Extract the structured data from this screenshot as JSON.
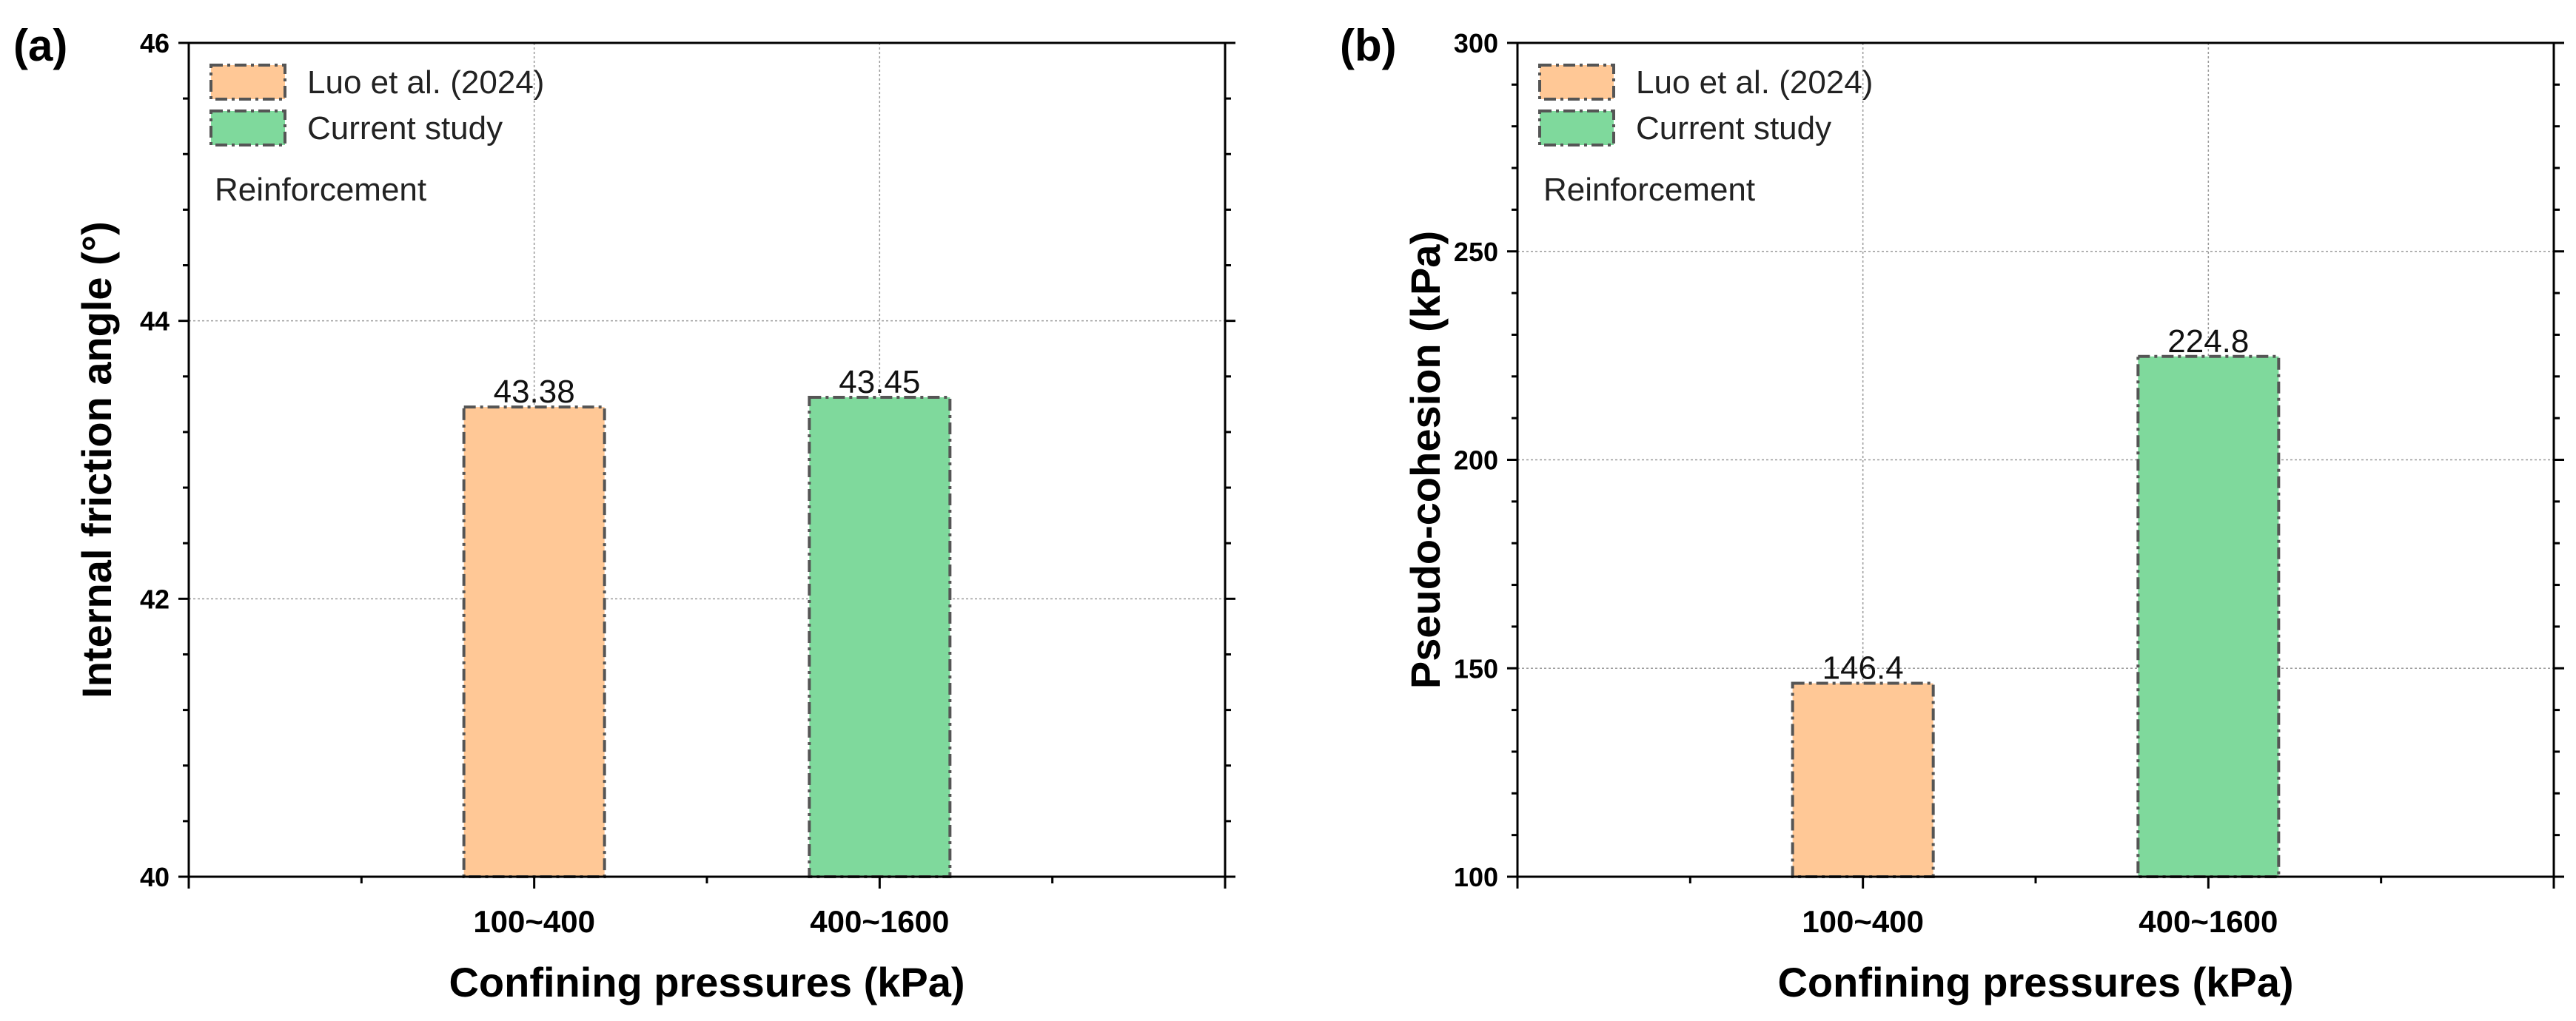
{
  "chart_data": [
    {
      "type": "bar",
      "panel_label": "(a)",
      "categories": [
        "100~400",
        "400~1600"
      ],
      "series": [
        {
          "name": "Luo et al. (2024)",
          "color": "#FFC896",
          "category": "100~400",
          "value": 43.38,
          "label": "43.38"
        },
        {
          "name": "Current study",
          "color": "#7FD99C",
          "category": "400~1600",
          "value": 43.45,
          "label": "43.45"
        }
      ],
      "annotation": "Reinforcement",
      "xlabel": "Confining pressures (kPa)",
      "ylabel": "Internal friction angle (°)",
      "ylim": [
        40,
        46
      ],
      "yticks": [
        "40",
        "42",
        "44",
        "46"
      ],
      "grid": true,
      "legend_position": "top-left"
    },
    {
      "type": "bar",
      "panel_label": "(b)",
      "categories": [
        "100~400",
        "400~1600"
      ],
      "series": [
        {
          "name": "Luo et al. (2024)",
          "color": "#FFC896",
          "category": "100~400",
          "value": 146.4,
          "label": "146.4"
        },
        {
          "name": "Current study",
          "color": "#7FD99C",
          "category": "400~1600",
          "value": 224.8,
          "label": "224.8"
        }
      ],
      "annotation": "Reinforcement",
      "xlabel": "Confining pressures (kPa)",
      "ylabel": "Pseudo-cohesion (kPa)",
      "ylim": [
        100,
        300
      ],
      "yticks": [
        "100",
        "150",
        "200",
        "250",
        "300"
      ],
      "grid": true,
      "legend_position": "top-left"
    }
  ]
}
